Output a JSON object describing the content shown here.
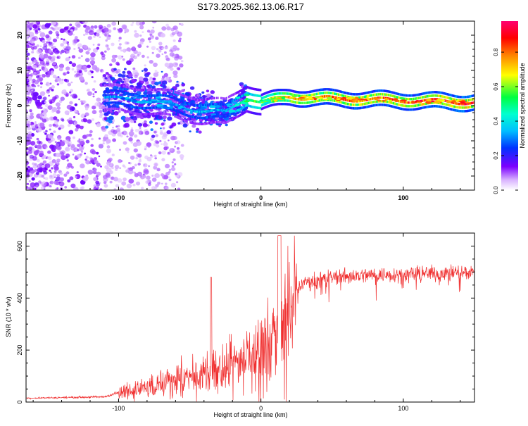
{
  "title": "S173.2025.362.13.06.R17",
  "colors": {
    "snr_line": "#f03030",
    "frame": "#000000",
    "colormap": [
      "#ffffff",
      "#7b00ff",
      "#0033ff",
      "#00e6ff",
      "#00ff40",
      "#ffff00",
      "#ff8000",
      "#ff0000",
      "#ff00a0"
    ]
  },
  "chart_data": [
    {
      "name": "spectrogram",
      "type": "heatmap",
      "title": "S173.2025.362.13.06.R17",
      "xlabel": "Height of straight line (km)",
      "ylabel": "Frequency (Hz)",
      "xlim": [
        -165,
        150
      ],
      "ylim": [
        -24,
        24
      ],
      "x_ticks": [
        -100,
        0,
        100
      ],
      "y_ticks": [
        -20,
        -10,
        0,
        10,
        20
      ],
      "y_tick_labels": [
        "-20",
        "-10",
        "0",
        "10",
        "20"
      ],
      "colorbar": {
        "label": "Normalized spectral amplitude",
        "range": [
          0.0,
          0.98
        ],
        "ticks": [
          0.0,
          0.2,
          0.4,
          0.6,
          0.8
        ],
        "tick_labels": [
          "0.0",
          "0.2",
          "0.4",
          "0.6",
          "0.8"
        ]
      },
      "ridge": [
        {
          "x": -100,
          "freq": 2,
          "amp": 0.35
        },
        {
          "x": -80,
          "freq": 1.5,
          "amp": 0.4
        },
        {
          "x": -60,
          "freq": 0,
          "amp": 0.35
        },
        {
          "x": -40,
          "freq": -1.5,
          "amp": 0.4
        },
        {
          "x": -25,
          "freq": -2,
          "amp": 0.35
        },
        {
          "x": -10,
          "freq": 2.5,
          "amp": 0.55
        },
        {
          "x": 0,
          "freq": 1,
          "amp": 0.6
        },
        {
          "x": 20,
          "freq": 2.5,
          "amp": 0.8
        },
        {
          "x": 50,
          "freq": 2,
          "amp": 0.85
        },
        {
          "x": 100,
          "freq": 1.5,
          "amp": 0.9
        },
        {
          "x": 145,
          "freq": 1,
          "amp": 0.95
        }
      ]
    },
    {
      "name": "snr",
      "type": "line",
      "xlabel": "Height of straight line (km)",
      "ylabel": "SNR (10 * v/v)",
      "xlim": [
        -165,
        150
      ],
      "ylim": [
        0,
        650
      ],
      "x_ticks": [
        -100,
        0,
        100
      ],
      "y_ticks": [
        0,
        200,
        400,
        600
      ],
      "series": [
        {
          "name": "SNR",
          "envelope_x": [
            -165,
            -110,
            -95,
            -80,
            -60,
            -45,
            -30,
            -20,
            -10,
            0,
            10,
            15,
            20,
            25,
            30,
            50,
            80,
            100,
            120,
            150
          ],
          "envelope_y": [
            15,
            20,
            45,
            70,
            100,
            110,
            140,
            170,
            200,
            240,
            300,
            370,
            390,
            430,
            460,
            480,
            490,
            490,
            495,
            500
          ]
        }
      ]
    }
  ]
}
